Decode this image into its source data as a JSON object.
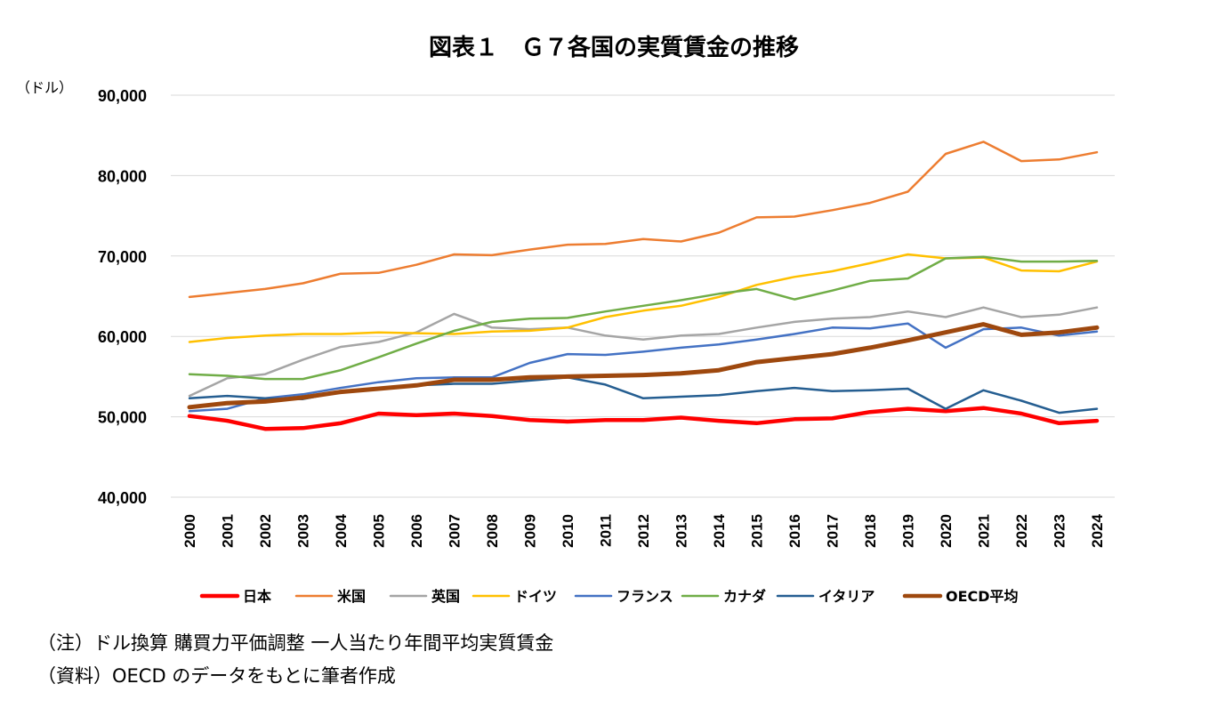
{
  "chart_data": {
    "type": "line",
    "title": "図表１　Ｇ７各国の実質賃金の推移",
    "ylabel": "（ドル）",
    "xlabel": "",
    "ylim": [
      40000,
      90000
    ],
    "yticks": [
      40000,
      50000,
      60000,
      70000,
      80000,
      90000
    ],
    "ytick_labels": [
      "40,000",
      "50,000",
      "60,000",
      "70,000",
      "80,000",
      "90,000"
    ],
    "grid": true,
    "legend_position": "bottom",
    "categories": [
      "2000",
      "2001",
      "2002",
      "2003",
      "2004",
      "2005",
      "2006",
      "2007",
      "2008",
      "2009",
      "2010",
      "2011",
      "2012",
      "2013",
      "2014",
      "2015",
      "2016",
      "2017",
      "2018",
      "2019",
      "2020",
      "2021",
      "2022",
      "2023",
      "2024"
    ],
    "series": [
      {
        "name": "日本",
        "color": "#ff0000",
        "width": 4.5,
        "values": [
          50100,
          49500,
          48500,
          48600,
          49200,
          50400,
          50200,
          50400,
          50100,
          49600,
          49400,
          49600,
          49600,
          49900,
          49500,
          49200,
          49700,
          49800,
          50600,
          51000,
          50700,
          51100,
          50400,
          49200,
          49500
        ]
      },
      {
        "name": "米国",
        "color": "#ed7d31",
        "width": 2.5,
        "values": [
          64900,
          65400,
          65900,
          66600,
          67800,
          67900,
          68900,
          70200,
          70100,
          70800,
          71400,
          71500,
          72100,
          71800,
          72900,
          74800,
          74900,
          75700,
          76600,
          78000,
          82700,
          84200,
          81800,
          82000,
          82900
        ]
      },
      {
        "name": "英国",
        "color": "#a5a5a5",
        "width": 2.5,
        "values": [
          52600,
          54800,
          55300,
          57100,
          58700,
          59300,
          60500,
          62800,
          61100,
          60900,
          61100,
          60100,
          59600,
          60100,
          60300,
          61100,
          61800,
          62200,
          62400,
          63100,
          62400,
          63600,
          62400,
          62700,
          63600
        ]
      },
      {
        "name": "ドイツ",
        "color": "#ffc000",
        "width": 2.5,
        "values": [
          59300,
          59800,
          60100,
          60300,
          60300,
          60500,
          60400,
          60300,
          60600,
          60700,
          61100,
          62400,
          63200,
          63800,
          64900,
          66400,
          67400,
          68100,
          69100,
          70200,
          69700,
          69800,
          68200,
          68100,
          69300
        ]
      },
      {
        "name": "フランス",
        "color": "#4472c4",
        "width": 2.5,
        "values": [
          50700,
          51000,
          52300,
          52800,
          53600,
          54300,
          54800,
          54900,
          54900,
          56700,
          57800,
          57700,
          58100,
          58600,
          59000,
          59600,
          60300,
          61100,
          61000,
          61600,
          58600,
          60900,
          61100,
          60100,
          60600
        ]
      },
      {
        "name": "カナダ",
        "color": "#70ad47",
        "width": 2.5,
        "values": [
          55300,
          55100,
          54700,
          54700,
          55800,
          57400,
          59100,
          60700,
          61800,
          62200,
          62300,
          63100,
          63800,
          64500,
          65300,
          65900,
          64600,
          65700,
          66900,
          67200,
          69700,
          69900,
          69300,
          69300,
          69400
        ]
      },
      {
        "name": "イタリア",
        "color": "#255e91",
        "width": 2.5,
        "values": [
          52300,
          52600,
          52300,
          52200,
          53100,
          53500,
          53900,
          54100,
          54100,
          54500,
          54900,
          54000,
          52300,
          52500,
          52700,
          53200,
          53600,
          53200,
          53300,
          53500,
          51000,
          53300,
          52000,
          50500,
          51000
        ]
      },
      {
        "name": "OECD平均",
        "color": "#9e480e",
        "width": 5,
        "values": [
          51200,
          51700,
          51900,
          52400,
          53100,
          53500,
          53900,
          54600,
          54600,
          54900,
          55000,
          55100,
          55200,
          55400,
          55800,
          56800,
          57300,
          57800,
          58600,
          59500,
          60500,
          61500,
          60200,
          60500,
          61100
        ]
      }
    ]
  },
  "notes": {
    "line1": "（注）ドル換算 購買力平価調整 一人当たり年間平均実質賃金",
    "line2": "（資料）OECD のデータをもとに筆者作成"
  }
}
